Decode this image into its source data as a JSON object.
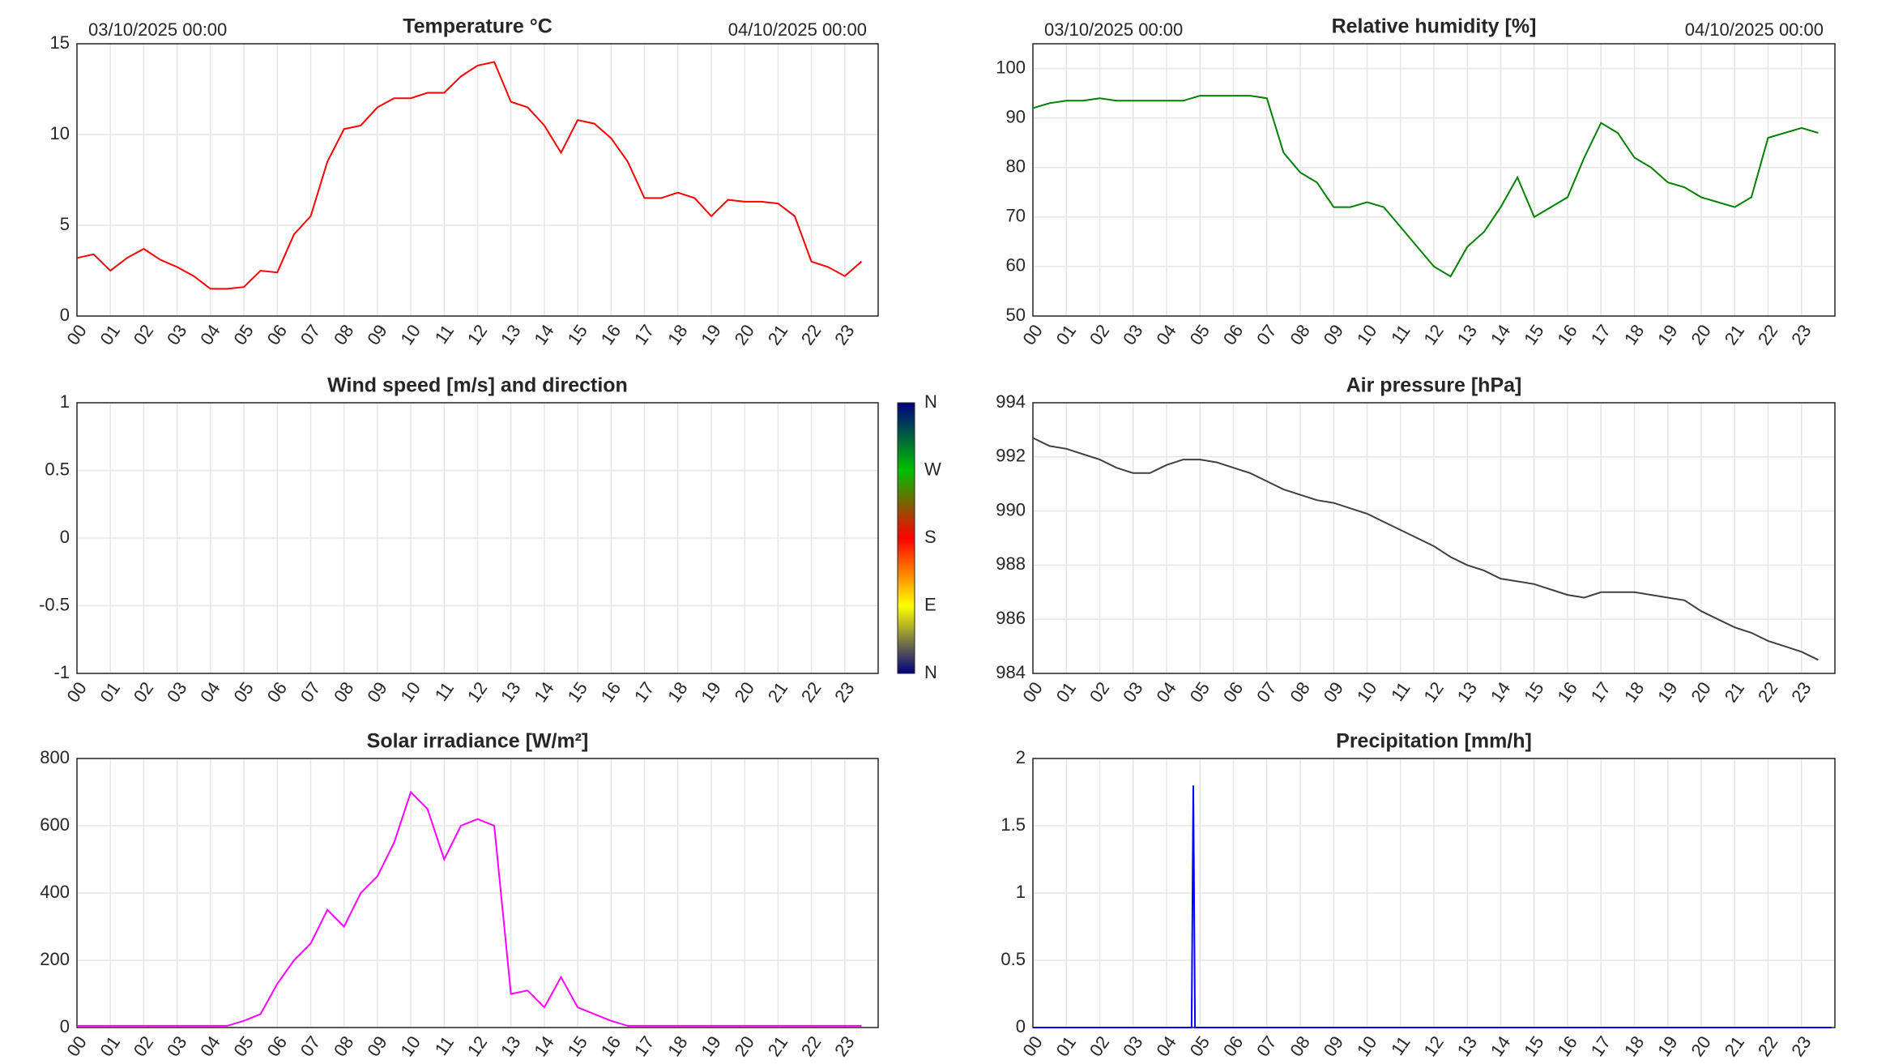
{
  "chart_data": [
    {
      "type": "line",
      "title": "Temperature °C",
      "date_start": "03/10/2025 00:00",
      "date_end": "04/10/2025 00:00",
      "color": "#ff0000",
      "x": [
        0,
        0.5,
        1,
        1.5,
        2,
        2.5,
        3,
        3.5,
        4,
        4.5,
        5,
        5.5,
        6,
        6.5,
        7,
        7.5,
        8,
        8.5,
        9,
        9.5,
        10,
        10.5,
        11,
        11.5,
        12,
        12.5,
        13,
        13.5,
        14,
        14.5,
        15,
        15.5,
        16,
        16.5,
        17,
        17.5,
        18,
        18.5,
        19,
        19.5,
        20,
        20.5,
        21,
        21.5,
        22,
        22.5,
        23,
        23.5
      ],
      "values": [
        3.2,
        3.4,
        2.5,
        3.2,
        3.7,
        3.1,
        2.7,
        2.2,
        1.5,
        1.5,
        1.6,
        2.5,
        2.4,
        4.5,
        5.5,
        8.5,
        10.3,
        10.5,
        11.5,
        12,
        12,
        12.3,
        12.3,
        13.2,
        13.8,
        14,
        11.8,
        11.5,
        10.5,
        9,
        10.8,
        10.6,
        9.8,
        8.5,
        6.5,
        6.5,
        6.8,
        6.5,
        5.5,
        6.4,
        6.3,
        6.3,
        6.2,
        5.5,
        3,
        2.7,
        2.2,
        3
      ],
      "xlim": [
        0,
        24
      ],
      "ylim": [
        0,
        15
      ],
      "yticks": [
        0,
        5,
        10,
        15
      ],
      "grid": true,
      "xticks": [
        {
          "value": 0,
          "label": "00"
        },
        {
          "value": 1,
          "label": "01"
        },
        {
          "value": 2,
          "label": "02"
        },
        {
          "value": 3,
          "label": "03"
        },
        {
          "value": 4,
          "label": "04"
        },
        {
          "value": 5,
          "label": "05"
        },
        {
          "value": 6,
          "label": "06"
        },
        {
          "value": 7,
          "label": "07"
        },
        {
          "value": 8,
          "label": "08"
        },
        {
          "value": 9,
          "label": "09"
        },
        10,
        11,
        12,
        13,
        14,
        15,
        16,
        17,
        18,
        19,
        20,
        21,
        22,
        23
      ]
    },
    {
      "type": "line",
      "title": "Relative humidity [%]",
      "date_start": "03/10/2025 00:00",
      "date_end": "04/10/2025 00:00",
      "color": "#008000",
      "x": [
        0,
        0.5,
        1,
        1.5,
        2,
        2.5,
        3,
        3.5,
        4,
        4.5,
        5,
        5.5,
        6,
        6.5,
        7,
        7.5,
        8,
        8.5,
        9,
        9.5,
        10,
        10.5,
        11,
        11.5,
        12,
        12.5,
        13,
        13.5,
        14,
        14.5,
        15,
        15.5,
        16,
        16.5,
        17,
        17.5,
        18,
        18.5,
        19,
        19.5,
        20,
        20.5,
        21,
        21.5,
        22,
        22.5,
        23,
        23.5
      ],
      "values": [
        92,
        93,
        93.5,
        93.5,
        94,
        93.5,
        93.5,
        93.5,
        93.5,
        93.5,
        94.5,
        94.5,
        94.5,
        94.5,
        94,
        83,
        79,
        77,
        72,
        72,
        73,
        72,
        68,
        64,
        60,
        58,
        64,
        67,
        72,
        78,
        70,
        72,
        74,
        82,
        89,
        87,
        82,
        80,
        77,
        76,
        74,
        73,
        72,
        74,
        86,
        87,
        88,
        87
      ],
      "xlim": [
        0,
        24
      ],
      "ylim": [
        50,
        105
      ],
      "yticks": [
        50,
        60,
        70,
        80,
        90,
        100
      ],
      "grid": true,
      "xticks": [
        {
          "value": 0,
          "label": "00"
        },
        {
          "value": 1,
          "label": "01"
        },
        {
          "value": 2,
          "label": "02"
        },
        {
          "value": 3,
          "label": "03"
        },
        {
          "value": 4,
          "label": "04"
        },
        {
          "value": 5,
          "label": "05"
        },
        {
          "value": 6,
          "label": "06"
        },
        {
          "value": 7,
          "label": "07"
        },
        {
          "value": 8,
          "label": "08"
        },
        {
          "value": 9,
          "label": "09"
        },
        10,
        11,
        12,
        13,
        14,
        15,
        16,
        17,
        18,
        19,
        20,
        21,
        22,
        23
      ]
    },
    {
      "type": "line",
      "title": "Wind speed [m/s] and direction",
      "colorbar_labels": [
        "N",
        "E",
        "S",
        "W",
        "N"
      ],
      "xlim": [
        0,
        24
      ],
      "ylim": [
        -1,
        1
      ],
      "yticks": [
        -1,
        -0.5,
        0,
        0.5,
        1
      ],
      "grid": true,
      "xticks": [
        {
          "value": 0,
          "label": "00"
        },
        {
          "value": 1,
          "label": "01"
        },
        {
          "value": 2,
          "label": "02"
        },
        {
          "value": 3,
          "label": "03"
        },
        {
          "value": 4,
          "label": "04"
        },
        {
          "value": 5,
          "label": "05"
        },
        {
          "value": 6,
          "label": "06"
        },
        {
          "value": 7,
          "label": "07"
        },
        {
          "value": 8,
          "label": "08"
        },
        {
          "value": 9,
          "label": "09"
        },
        10,
        11,
        12,
        13,
        14,
        15,
        16,
        17,
        18,
        19,
        20,
        21,
        22,
        23
      ]
    },
    {
      "type": "line",
      "title": "Air pressure [hPa]",
      "color": "#404040",
      "x": [
        0,
        0.5,
        1,
        1.5,
        2,
        2.5,
        3,
        3.5,
        4,
        4.5,
        5,
        5.5,
        6,
        6.5,
        7,
        7.5,
        8,
        8.5,
        9,
        9.5,
        10,
        10.5,
        11,
        11.5,
        12,
        12.5,
        13,
        13.5,
        14,
        14.5,
        15,
        15.5,
        16,
        16.5,
        17,
        17.5,
        18,
        18.5,
        19,
        19.5,
        20,
        20.5,
        21,
        21.5,
        22,
        22.5,
        23,
        23.5
      ],
      "values": [
        992.7,
        992.4,
        992.3,
        992.1,
        991.9,
        991.6,
        991.4,
        991.4,
        991.7,
        991.9,
        991.9,
        991.8,
        991.6,
        991.4,
        991.1,
        990.8,
        990.6,
        990.4,
        990.3,
        990.1,
        989.9,
        989.6,
        989.3,
        989.0,
        988.7,
        988.3,
        988.0,
        987.8,
        987.5,
        987.4,
        987.3,
        987.1,
        986.9,
        986.8,
        987.0,
        987.0,
        987.0,
        986.9,
        986.8,
        986.7,
        986.3,
        986.0,
        985.7,
        985.5,
        985.2,
        985.0,
        984.8,
        984.5
      ],
      "xlim": [
        0,
        24
      ],
      "ylim": [
        984,
        994
      ],
      "yticks": [
        984,
        986,
        988,
        990,
        992,
        994
      ],
      "grid": true,
      "xticks": [
        {
          "value": 0,
          "label": "00"
        },
        {
          "value": 1,
          "label": "01"
        },
        {
          "value": 2,
          "label": "02"
        },
        {
          "value": 3,
          "label": "03"
        },
        {
          "value": 4,
          "label": "04"
        },
        {
          "value": 5,
          "label": "05"
        },
        {
          "value": 6,
          "label": "06"
        },
        {
          "value": 7,
          "label": "07"
        },
        {
          "value": 8,
          "label": "08"
        },
        {
          "value": 9,
          "label": "09"
        },
        10,
        11,
        12,
        13,
        14,
        15,
        16,
        17,
        18,
        19,
        20,
        21,
        22,
        23
      ]
    },
    {
      "type": "line",
      "title": "Solar irradiance [W/m²]",
      "color": "#ff00ff",
      "x": [
        0,
        0.5,
        1,
        1.5,
        2,
        2.5,
        3,
        3.5,
        4,
        4.5,
        5,
        5.5,
        6,
        6.5,
        7,
        7.5,
        8,
        8.5,
        9,
        9.5,
        10,
        10.5,
        11,
        11.5,
        12,
        12.5,
        13,
        13.5,
        14,
        14.5,
        15,
        15.5,
        16,
        16.5,
        17,
        17.5,
        18,
        18.5,
        19,
        19.5,
        20,
        20.5,
        21,
        21.5,
        22,
        22.5,
        23,
        23.5
      ],
      "values": [
        5,
        5,
        5,
        5,
        5,
        5,
        5,
        5,
        5,
        5,
        20,
        40,
        130,
        200,
        250,
        350,
        300,
        400,
        450,
        550,
        700,
        650,
        500,
        600,
        620,
        600,
        100,
        110,
        60,
        150,
        60,
        40,
        20,
        5,
        5,
        5,
        5,
        5,
        5,
        5,
        5,
        5,
        5,
        5,
        5,
        5,
        5,
        5
      ],
      "xlim": [
        0,
        24
      ],
      "ylim": [
        0,
        800
      ],
      "yticks": [
        0,
        200,
        400,
        600,
        800
      ],
      "grid": true,
      "xticks": [
        {
          "value": 0,
          "label": "00"
        },
        {
          "value": 1,
          "label": "01"
        },
        {
          "value": 2,
          "label": "02"
        },
        {
          "value": 3,
          "label": "03"
        },
        {
          "value": 4,
          "label": "04"
        },
        {
          "value": 5,
          "label": "05"
        },
        {
          "value": 6,
          "label": "06"
        },
        {
          "value": 7,
          "label": "07"
        },
        {
          "value": 8,
          "label": "08"
        },
        {
          "value": 9,
          "label": "09"
        },
        10,
        11,
        12,
        13,
        14,
        15,
        16,
        17,
        18,
        19,
        20,
        21,
        22,
        23
      ]
    },
    {
      "type": "line",
      "title": "Precipitation [mm/h]",
      "color": "#0000ff",
      "x": [
        0,
        4.75,
        4.8,
        4.85,
        23.9
      ],
      "values": [
        0,
        0,
        1.8,
        0,
        0
      ],
      "xlim": [
        0,
        24
      ],
      "ylim": [
        0,
        2
      ],
      "yticks": [
        0,
        0.5,
        1,
        1.5,
        2
      ],
      "grid": true,
      "xticks": [
        {
          "value": 0,
          "label": "00"
        },
        {
          "value": 1,
          "label": "01"
        },
        {
          "value": 2,
          "label": "02"
        },
        {
          "value": 3,
          "label": "03"
        },
        {
          "value": 4,
          "label": "04"
        },
        {
          "value": 5,
          "label": "05"
        },
        {
          "value": 6,
          "label": "06"
        },
        {
          "value": 7,
          "label": "07"
        },
        {
          "value": 8,
          "label": "08"
        },
        {
          "value": 9,
          "label": "09"
        },
        10,
        11,
        12,
        13,
        14,
        15,
        16,
        17,
        18,
        19,
        20,
        21,
        22,
        23
      ]
    }
  ]
}
